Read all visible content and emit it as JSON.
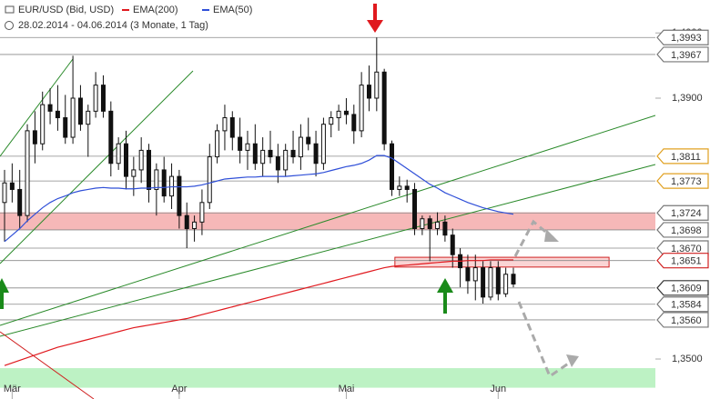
{
  "chart_data": {
    "type": "candlestick",
    "title": "EUR/USD (Bid, USD)",
    "subtitle": "28.02.2014 - 04.06.2014 (3 Monate, 1 Tag)",
    "ylim": [
      1.34387,
      1.40505
    ],
    "xlim": [
      -0.6,
      85.7
    ],
    "yticks": [
      {
        "value": 1.35,
        "label": "1,3500"
      },
      {
        "value": 1.39,
        "label": "1,3900"
      },
      {
        "value": 1.4,
        "label": "1,4000"
      }
    ],
    "xticks": [
      {
        "value": 1,
        "label": "Mär"
      },
      {
        "value": 23,
        "label": "Apr"
      },
      {
        "value": 45,
        "label": "Mai"
      },
      {
        "value": 65,
        "label": "Jun"
      }
    ],
    "candles": {
      "open": [
        1.374,
        1.377,
        1.376,
        1.372,
        1.385,
        1.383,
        1.389,
        1.388,
        1.387,
        1.384,
        1.39,
        1.386,
        1.388,
        1.392,
        1.388,
        1.38,
        1.383,
        1.378,
        1.379,
        1.382,
        1.376,
        1.379,
        1.375,
        1.378,
        1.372,
        1.37,
        1.371,
        1.374,
        1.381,
        1.385,
        1.387,
        1.384,
        1.382,
        1.383,
        1.38,
        1.382,
        1.381,
        1.379,
        1.382,
        1.381,
        1.384,
        1.383,
        1.38,
        1.386,
        1.387,
        1.388,
        1.3875,
        1.385,
        1.392,
        1.39,
        1.394,
        1.383,
        1.376,
        1.3765,
        1.376,
        1.37,
        1.3715,
        1.37,
        1.371,
        1.369,
        1.366,
        1.364,
        1.362,
        1.364,
        1.3595,
        1.364,
        1.36,
        1.363
      ],
      "high": [
        1.379,
        1.38,
        1.379,
        1.386,
        1.388,
        1.391,
        1.3915,
        1.392,
        1.3905,
        1.3965,
        1.392,
        1.389,
        1.394,
        1.3935,
        1.3895,
        1.384,
        1.385,
        1.381,
        1.384,
        1.383,
        1.38,
        1.381,
        1.38,
        1.379,
        1.374,
        1.372,
        1.376,
        1.383,
        1.386,
        1.389,
        1.388,
        1.387,
        1.385,
        1.386,
        1.384,
        1.385,
        1.383,
        1.383,
        1.385,
        1.386,
        1.387,
        1.385,
        1.387,
        1.388,
        1.389,
        1.39,
        1.389,
        1.394,
        1.395,
        1.3993,
        1.3945,
        1.3835,
        1.378,
        1.3775,
        1.377,
        1.372,
        1.372,
        1.3725,
        1.372,
        1.37,
        1.367,
        1.366,
        1.366,
        1.365,
        1.365,
        1.365,
        1.364,
        1.364
      ],
      "low": [
        1.368,
        1.374,
        1.37,
        1.371,
        1.38,
        1.382,
        1.386,
        1.385,
        1.383,
        1.383,
        1.385,
        1.381,
        1.387,
        1.387,
        1.378,
        1.379,
        1.376,
        1.375,
        1.377,
        1.374,
        1.372,
        1.374,
        1.373,
        1.37,
        1.367,
        1.368,
        1.369,
        1.373,
        1.38,
        1.382,
        1.382,
        1.38,
        1.379,
        1.379,
        1.378,
        1.38,
        1.377,
        1.378,
        1.38,
        1.379,
        1.382,
        1.378,
        1.379,
        1.384,
        1.385,
        1.386,
        1.383,
        1.384,
        1.388,
        1.388,
        1.382,
        1.375,
        1.375,
        1.374,
        1.369,
        1.369,
        1.365,
        1.369,
        1.368,
        1.364,
        1.361,
        1.36,
        1.359,
        1.3585,
        1.359,
        1.359,
        1.3595,
        1.361
      ],
      "close": [
        1.377,
        1.376,
        1.372,
        1.385,
        1.383,
        1.389,
        1.388,
        1.387,
        1.384,
        1.39,
        1.386,
        1.388,
        1.392,
        1.388,
        1.38,
        1.383,
        1.378,
        1.379,
        1.382,
        1.376,
        1.379,
        1.375,
        1.378,
        1.372,
        1.37,
        1.371,
        1.374,
        1.381,
        1.385,
        1.387,
        1.384,
        1.382,
        1.383,
        1.38,
        1.382,
        1.381,
        1.379,
        1.382,
        1.381,
        1.384,
        1.383,
        1.38,
        1.386,
        1.387,
        1.388,
        1.3875,
        1.385,
        1.392,
        1.39,
        1.394,
        1.383,
        1.376,
        1.3765,
        1.376,
        1.37,
        1.3715,
        1.37,
        1.371,
        1.369,
        1.366,
        1.364,
        1.362,
        1.364,
        1.3595,
        1.364,
        1.36,
        1.363,
        1.3615
      ]
    },
    "series": [
      {
        "name": "EMA(200)",
        "color": "#e0191e",
        "values": [
          1.349,
          1.3494,
          1.3498,
          1.3502,
          1.3506,
          1.351,
          1.3514,
          1.3518,
          1.3521,
          1.3524,
          1.3527,
          1.353,
          1.3533,
          1.3536,
          1.3539,
          1.3542,
          1.3545,
          1.3548,
          1.355,
          1.3552,
          1.3554,
          1.3556,
          1.3558,
          1.356,
          1.3562,
          1.3565,
          1.3568,
          1.3571,
          1.3574,
          1.3577,
          1.358,
          1.3583,
          1.3586,
          1.3589,
          1.3592,
          1.3595,
          1.3598,
          1.3601,
          1.3604,
          1.3607,
          1.361,
          1.3613,
          1.3616,
          1.3619,
          1.3622,
          1.3625,
          1.3628,
          1.3631,
          1.3634,
          1.3637,
          1.364,
          1.3642,
          1.3643,
          1.3644,
          1.3645,
          1.3646,
          1.3647,
          1.3648,
          1.3649,
          1.365,
          1.365,
          1.3651,
          1.3651,
          1.3651,
          1.3652,
          1.3652,
          1.3652,
          1.3652
        ]
      },
      {
        "name": "EMA(50)",
        "color": "#2f4fd8",
        "values": [
          1.368,
          1.369,
          1.37,
          1.3712,
          1.3722,
          1.3732,
          1.374,
          1.3746,
          1.375,
          1.3755,
          1.3758,
          1.376,
          1.3762,
          1.3763,
          1.3762,
          1.3762,
          1.3761,
          1.3761,
          1.3762,
          1.3762,
          1.3763,
          1.3763,
          1.3764,
          1.3764,
          1.3764,
          1.3765,
          1.3767,
          1.377,
          1.3773,
          1.3776,
          1.3777,
          1.3778,
          1.3779,
          1.3779,
          1.378,
          1.378,
          1.378,
          1.378,
          1.3781,
          1.3782,
          1.3783,
          1.3784,
          1.3786,
          1.3789,
          1.3792,
          1.3795,
          1.3797,
          1.38,
          1.3805,
          1.3812,
          1.3812,
          1.3808,
          1.38,
          1.3792,
          1.3784,
          1.3776,
          1.3768,
          1.3762,
          1.3755,
          1.375,
          1.3745,
          1.374,
          1.3736,
          1.3732,
          1.3729,
          1.3726,
          1.3724,
          1.3722
        ]
      }
    ],
    "levels": [
      {
        "value": 1.3993,
        "label": "1,3993",
        "color": "#777777"
      },
      {
        "value": 1.3967,
        "label": "1,3967",
        "color": "#777777"
      },
      {
        "value": 1.3811,
        "label": "1,3811",
        "color": "#e0a020"
      },
      {
        "value": 1.3773,
        "label": "1,3773",
        "color": "#e0a020"
      },
      {
        "value": 1.3724,
        "label": "1,3724",
        "color": "#777777"
      },
      {
        "value": 1.3698,
        "label": "1,3698",
        "color": "#777777"
      },
      {
        "value": 1.367,
        "label": "1,3670",
        "color": "#777777"
      },
      {
        "value": 1.3651,
        "label": "1,3651",
        "color": "#d02020"
      },
      {
        "value": 1.3609,
        "label": "1,3609",
        "color": "#333333"
      },
      {
        "value": 1.3584,
        "label": "1,3584",
        "color": "#777777"
      },
      {
        "value": 1.356,
        "label": "1,3560",
        "color": "#777777"
      }
    ],
    "zones": [
      {
        "low": 1.3698,
        "high": 1.3725,
        "color": "#f6b8b8"
      },
      {
        "low": 1.3456,
        "high": 1.3486,
        "color": "#bdf2c4"
      },
      {
        "low": 1.3641,
        "high": 1.3656,
        "from": 51.4,
        "to": 79.6,
        "color": "#f6b8b8"
      }
    ]
  }
}
